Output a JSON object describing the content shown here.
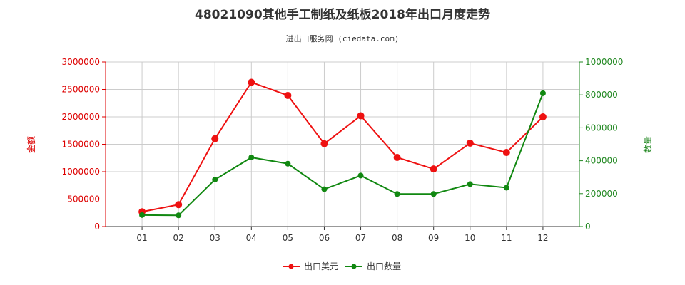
{
  "chart_data": {
    "type": "line",
    "title": "48021090其他手工制纸及纸板2018年出口月度走势",
    "subtitle": "进出口服务网 (ciedata.com)",
    "categories": [
      "01",
      "02",
      "03",
      "04",
      "05",
      "06",
      "07",
      "08",
      "09",
      "10",
      "11",
      "12"
    ],
    "y_left": {
      "label": "金额",
      "ylim": [
        0,
        3000000
      ],
      "ticks": [
        "0",
        "500000",
        "1000000",
        "1500000",
        "2000000",
        "2500000",
        "3000000"
      ],
      "color": "#dd0000"
    },
    "y_right": {
      "label": "数量",
      "ylim": [
        0,
        1000000
      ],
      "ticks": [
        "0",
        "200000",
        "400000",
        "600000",
        "800000",
        "1000000"
      ],
      "color": "#228822"
    },
    "series": [
      {
        "name": "出口美元",
        "axis": "left",
        "color": "#ee1111",
        "values": [
          270000,
          400000,
          1600000,
          2630000,
          2390000,
          1510000,
          2020000,
          1260000,
          1050000,
          1520000,
          1350000,
          2000000
        ]
      },
      {
        "name": "出口数量",
        "axis": "right",
        "color": "#118811",
        "values": [
          70000,
          68000,
          285000,
          420000,
          382000,
          227000,
          310000,
          198000,
          198000,
          258000,
          236000,
          810000
        ]
      }
    ],
    "grid": true,
    "legend_position": "bottom"
  }
}
